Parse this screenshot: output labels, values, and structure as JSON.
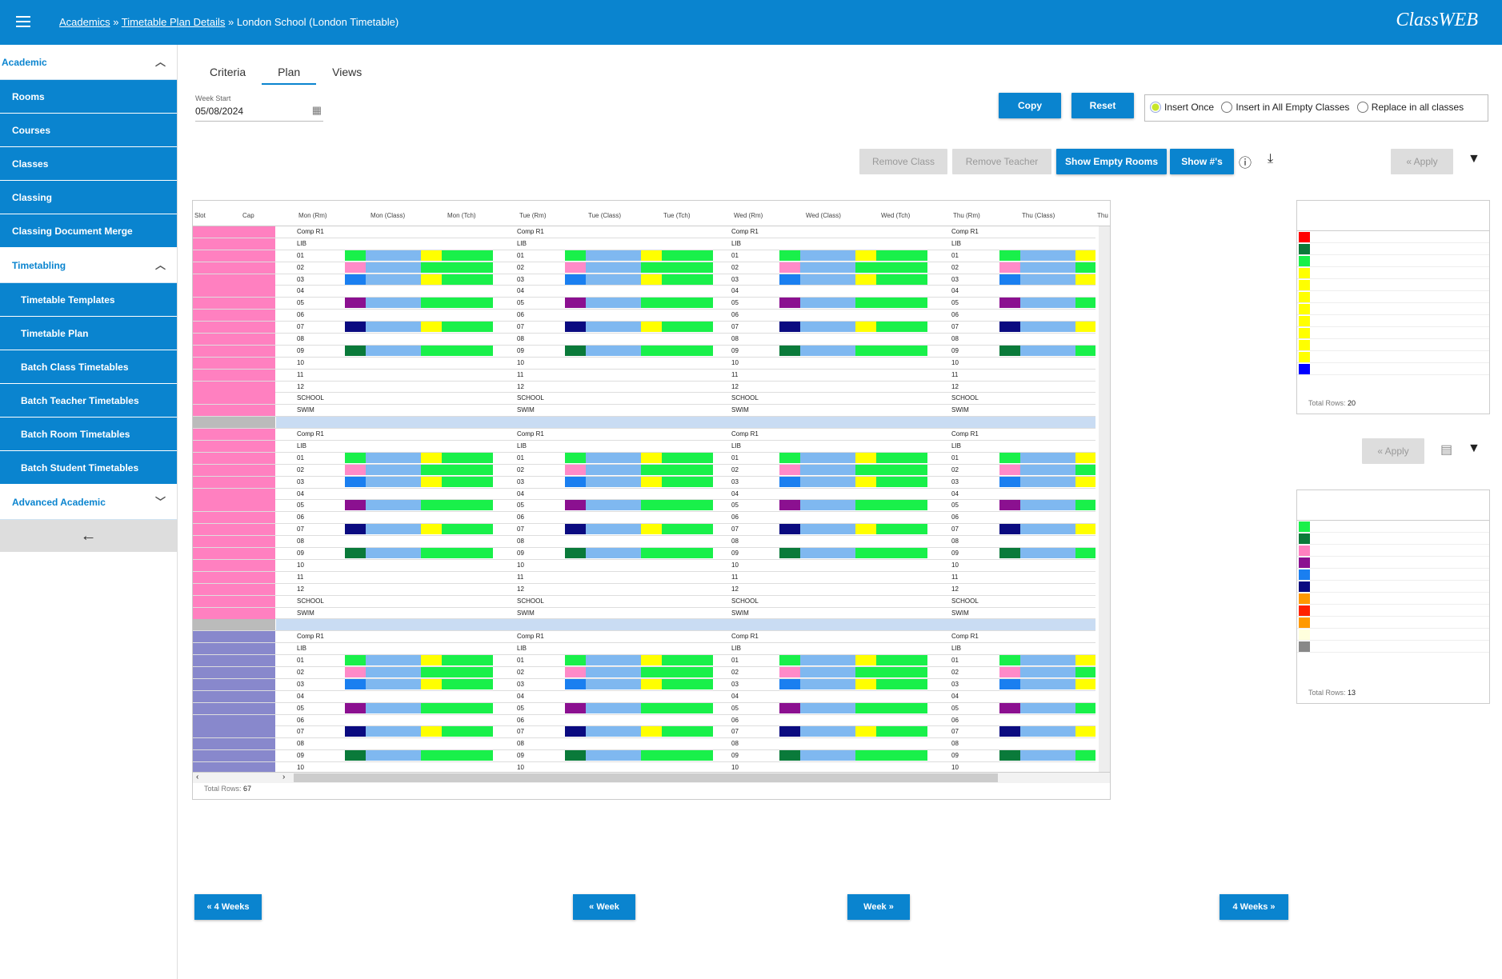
{
  "header": {
    "crumb1": "Academics",
    "sep1": " » ",
    "crumb2": "Timetable Plan Details",
    "tail": " » London School (London Timetable)",
    "logo": "ClassWEB"
  },
  "sidebar": {
    "academic": "Academic",
    "items": [
      "Rooms",
      "Courses",
      "Classes",
      "Classing",
      "Classing Document Merge"
    ],
    "timetabling": "Timetabling",
    "subitems": [
      "Timetable Templates",
      "Timetable Plan",
      "Batch Class Timetables",
      "Batch Teacher Timetables",
      "Batch Room Timetables",
      "Batch Student Timetables"
    ],
    "advanced": "Advanced Academic"
  },
  "tabs": [
    "Criteria",
    "Plan",
    "Views"
  ],
  "week": {
    "label": "Week Start",
    "value": "05/08/2024"
  },
  "buttons": {
    "copy": "Copy",
    "reset": "Reset",
    "remove_class": "Remove Class",
    "remove_teacher": "Remove Teacher",
    "show_empty": "Show Empty Rooms",
    "show_nums": "Show #'s",
    "apply": "« Apply",
    "apply2": "« Apply"
  },
  "radios": [
    "Insert Once",
    "Insert in All Empty Classes",
    "Replace in all classes"
  ],
  "grid": {
    "headers": [
      "Slot",
      "Cap",
      "Mon (Rm)",
      "Mon (Class)",
      "Mon (Tch)",
      "Tue (Rm)",
      "Tue (Class)",
      "Tue (Tch)",
      "Wed (Rm)",
      "Wed (Class)",
      "Wed (Tch)",
      "Thu (Rm)",
      "Thu (Class)",
      "Thu"
    ],
    "total_label": "Total Rows: ",
    "total": "67"
  },
  "side1": {
    "total_label": "Total Rows: ",
    "total": "20"
  },
  "side2": {
    "total_label": "Total Rows: ",
    "total": "13"
  },
  "nav": {
    "back4": "« 4 Weeks",
    "back1": "« Week",
    "fwd1": "Week »",
    "fwd4": "4 Weeks »"
  }
}
